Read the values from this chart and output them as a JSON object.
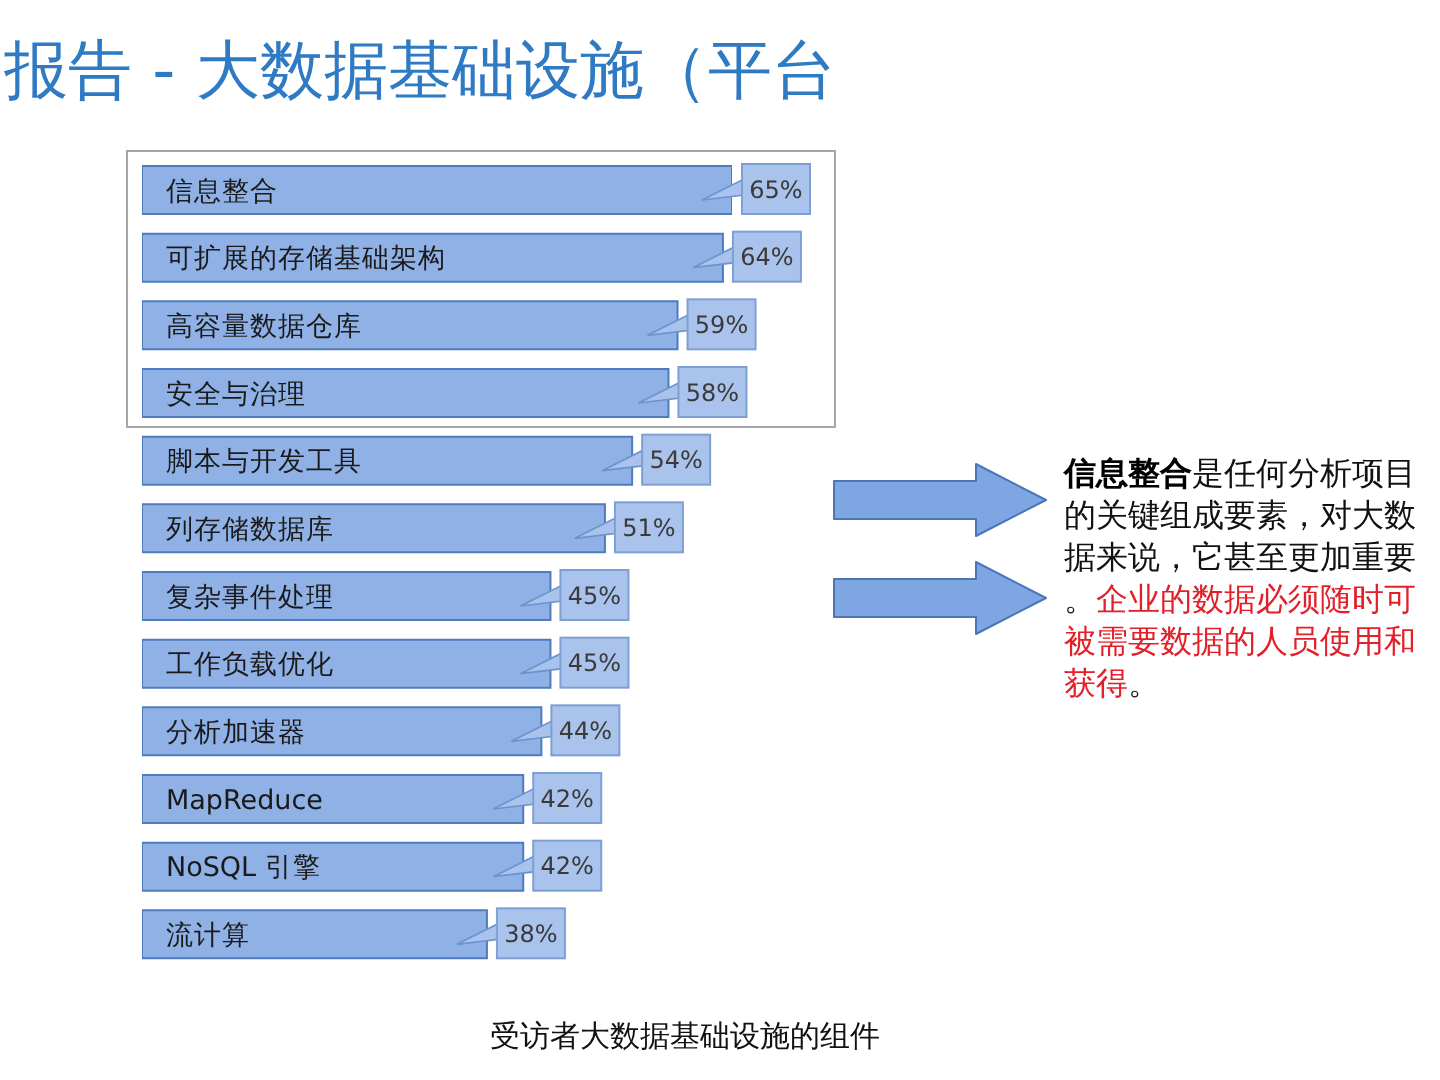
{
  "chart_data": {
    "type": "bar",
    "orientation": "horizontal",
    "title": "报告 - 大数据基础设施（平台",
    "categories": [
      "信息整合",
      "可扩展的存储基础架构",
      "高容量数据仓库",
      "安全与治理",
      "脚本与开发工具",
      "列存储数据库",
      "复杂事件处理",
      "工作负载优化",
      "分析加速器",
      "MapReduce",
      "NoSQL 引擎",
      "流计算"
    ],
    "values": [
      65,
      64,
      59,
      58,
      54,
      51,
      45,
      45,
      44,
      42,
      42,
      38
    ],
    "value_labels": [
      "65%",
      "64%",
      "59%",
      "58%",
      "54%",
      "51%",
      "45%",
      "45%",
      "44%",
      "42%",
      "42%",
      "38%"
    ],
    "color": "#8fb1e6",
    "tick_labels": "y",
    "annotations": [
      "信息整合",
      "是任何分析项目",
      "的关键组成要素，对大数",
      "据来说，它甚至更加重要",
      "。",
      "企业的数据必须随时可",
      "被需要数据的人员使用和",
      "获得",
      "。",
      "受访者大数据基础设施的组件"
    ]
  }
}
